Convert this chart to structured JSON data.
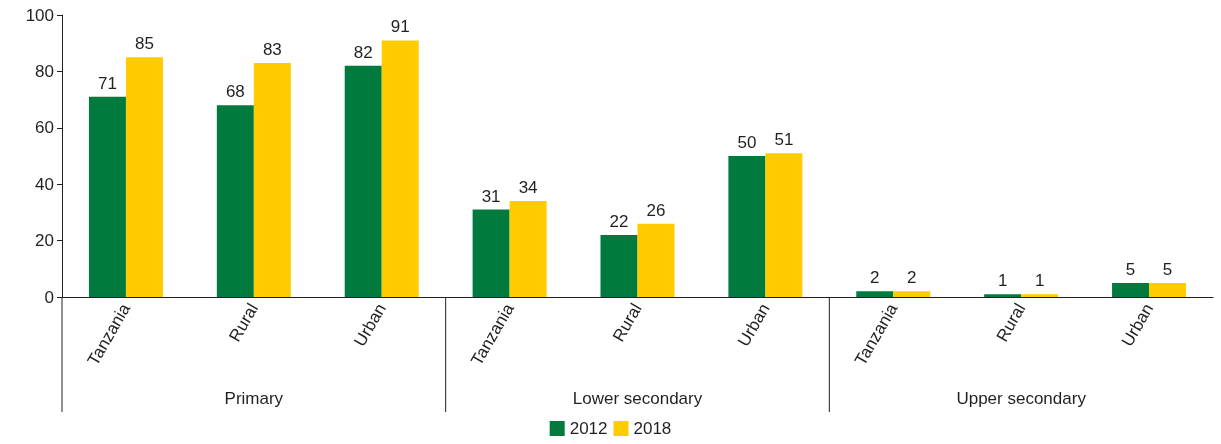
{
  "chart_data": {
    "type": "bar",
    "categories": [
      "Tanzania",
      "Rural",
      "Urban",
      "Tanzania",
      "Rural",
      "Urban",
      "Tanzania",
      "Rural",
      "Urban"
    ],
    "series": [
      {
        "name": "2012",
        "color": "#007a3d",
        "values": [
          71,
          68,
          82,
          31,
          22,
          50,
          2,
          1,
          5
        ]
      },
      {
        "name": "2018",
        "color": "#ffcc00",
        "values": [
          85,
          83,
          91,
          34,
          26,
          51,
          2,
          1,
          5
        ]
      }
    ],
    "annotations": [
      "Primary",
      "Lower secondary",
      "Upper secondary"
    ],
    "ylim": [
      0,
      100
    ],
    "yticks": [
      0,
      20,
      40,
      60,
      80,
      100
    ],
    "grid": false,
    "legend": "bottom",
    "data_labels": true
  }
}
